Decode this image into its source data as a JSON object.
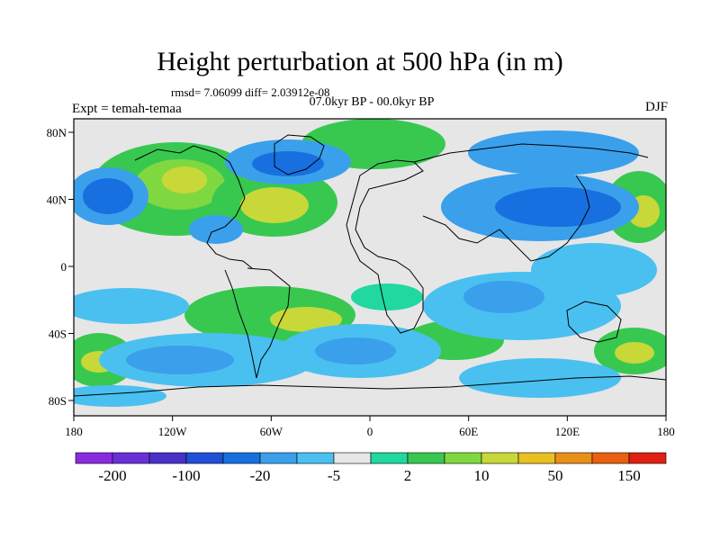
{
  "title": "Height perturbation at 500 hPa (in m)",
  "stats": "rmsd= 7.06099  diff= 2.03912e-08",
  "period": "07.0kyr BP - 00.0kyr BP",
  "expt": "Expt = temah-temaa",
  "season": "DJF",
  "map": {
    "lon_ticks": [
      "180",
      "120W",
      "60W",
      "0",
      "60E",
      "120E",
      "180"
    ],
    "lat_ticks": [
      "80N",
      "40N",
      "0",
      "40S",
      "80S"
    ],
    "background_color": "#e6e6e6"
  },
  "colorbar": {
    "colors": [
      "#8a2be2",
      "#6a30d8",
      "#4830c8",
      "#2050d8",
      "#1870e0",
      "#3aa0ec",
      "#4ac0f0",
      "#e6e6e6",
      "#20d8a0",
      "#38c850",
      "#80d840",
      "#c8d838",
      "#e8c020",
      "#e89018",
      "#e86010",
      "#e02010"
    ],
    "labels": [
      "-200",
      "-100",
      "-20",
      "-5",
      "2",
      "10",
      "50",
      "150"
    ]
  }
}
